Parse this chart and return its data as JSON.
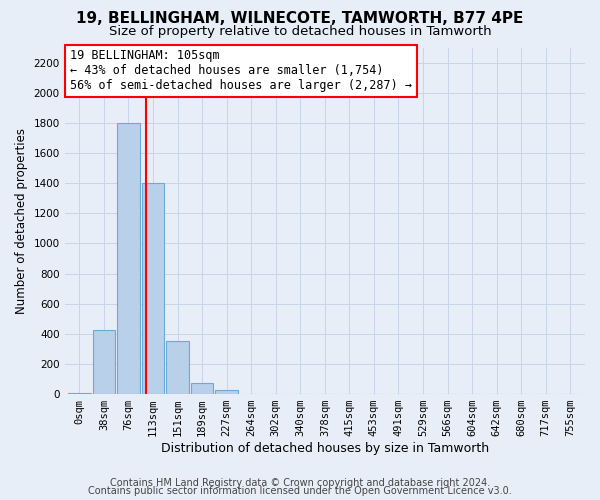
{
  "title1": "19, BELLINGHAM, WILNECOTE, TAMWORTH, B77 4PE",
  "title2": "Size of property relative to detached houses in Tamworth",
  "xlabel": "Distribution of detached houses by size in Tamworth",
  "ylabel": "Number of detached properties",
  "bar_labels": [
    "0sqm",
    "38sqm",
    "76sqm",
    "113sqm",
    "151sqm",
    "189sqm",
    "227sqm",
    "264sqm",
    "302sqm",
    "340sqm",
    "378sqm",
    "415sqm",
    "453sqm",
    "491sqm",
    "529sqm",
    "566sqm",
    "604sqm",
    "642sqm",
    "680sqm",
    "717sqm",
    "755sqm"
  ],
  "bar_values": [
    10,
    425,
    1800,
    1400,
    350,
    75,
    25,
    0,
    0,
    0,
    0,
    0,
    0,
    0,
    0,
    0,
    0,
    0,
    0,
    0,
    0
  ],
  "bar_color": "#b8d0ea",
  "bar_edgecolor": "#6aaad4",
  "vline_x": 2.72,
  "vline_color": "red",
  "annotation_text": "19 BELLINGHAM: 105sqm\n← 43% of detached houses are smaller (1,754)\n56% of semi-detached houses are larger (2,287) →",
  "annotation_box_color": "white",
  "annotation_box_edgecolor": "red",
  "ylim": [
    0,
    2300
  ],
  "yticks": [
    0,
    200,
    400,
    600,
    800,
    1000,
    1200,
    1400,
    1600,
    1800,
    2000,
    2200
  ],
  "grid_color": "#c8d4e8",
  "background_color": "#e8eef8",
  "footer1": "Contains HM Land Registry data © Crown copyright and database right 2024.",
  "footer2": "Contains public sector information licensed under the Open Government Licence v3.0.",
  "title1_fontsize": 11,
  "title2_fontsize": 9.5,
  "xlabel_fontsize": 9,
  "ylabel_fontsize": 8.5,
  "tick_fontsize": 7.5,
  "footer_fontsize": 7,
  "annot_fontsize": 8.5
}
